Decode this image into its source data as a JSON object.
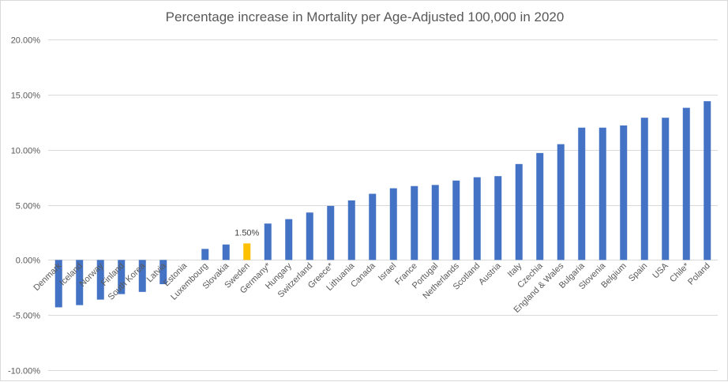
{
  "chart_data": {
    "type": "bar",
    "title": "Percentage increase in Mortality per Age-Adjusted 100,000 in 2020",
    "xlabel": "",
    "ylabel": "",
    "ylim": [
      -10,
      20
    ],
    "yticks": [
      20,
      15,
      10,
      5,
      0,
      -5,
      -10
    ],
    "ytick_labels": [
      "20.00%",
      "15.00%",
      "10.00%",
      "5.00%",
      "0.00%",
      "-5.00%",
      "-10.00%"
    ],
    "grid": true,
    "legend": "none",
    "categories": [
      "Denmark",
      "Iceland",
      "Norway",
      "Finland",
      "South Korea",
      "Latvia",
      "Estonia",
      "Luxembourg",
      "Slovakia",
      "Sweden",
      "Germany*",
      "Hungary",
      "Switzerland",
      "Greece*",
      "Lithuania",
      "Canada",
      "Israel",
      "France",
      "Portugal",
      "Netherlands",
      "Scotland",
      "Austria",
      "Italy",
      "Czechia",
      "England & Wales",
      "Bulgaria",
      "Slovenia",
      "Belgium",
      "Spain",
      "USA",
      "Chile*",
      "Poland"
    ],
    "series": [
      {
        "name": "Percentage increase in mortality",
        "unit": "%",
        "values": [
          -4.3,
          -4.1,
          -3.6,
          -3.1,
          -2.9,
          -2.2,
          0.0,
          1.0,
          1.4,
          1.5,
          3.3,
          3.7,
          4.3,
          4.9,
          5.4,
          6.0,
          6.5,
          6.7,
          6.8,
          7.2,
          7.5,
          7.6,
          8.7,
          9.7,
          10.5,
          12.0,
          12.0,
          12.2,
          12.9,
          12.9,
          13.8,
          14.4
        ]
      }
    ],
    "highlight": {
      "category": "Sweden",
      "label": "1.50%"
    },
    "colors": {
      "bar": "#4472C4",
      "highlight": "#FFC000",
      "grid": "#D9D9D9",
      "text": "#595959"
    }
  }
}
